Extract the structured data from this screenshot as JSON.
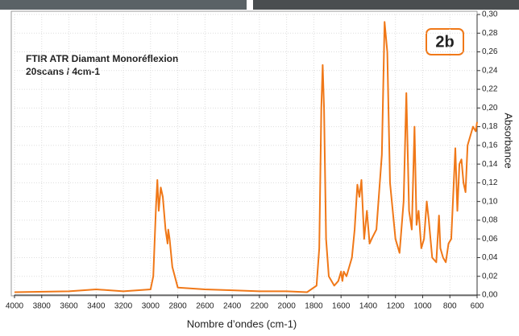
{
  "chart_data": {
    "type": "line",
    "title": "FTIR ATR Diamant Monoréflexion",
    "subtitle": "20scans / 4cm-1",
    "badge": "2b",
    "x_label": "Nombre d’ondes (cm-1)",
    "y_label": "Absorbance",
    "color": "#f07818",
    "grid": true,
    "xlim": [
      4000,
      600
    ],
    "ylim": [
      0,
      0.3
    ],
    "xticks": [
      4000,
      3800,
      3600,
      3400,
      3200,
      3000,
      2800,
      2600,
      2400,
      2200,
      2000,
      1800,
      1600,
      1400,
      1200,
      1000,
      800,
      600
    ],
    "yticks": [
      {
        "value": 0,
        "label": "0,00"
      },
      {
        "value": 0.02,
        "label": "0,02"
      },
      {
        "value": 0.04,
        "label": "0,04"
      },
      {
        "value": 0.06,
        "label": "0,06"
      },
      {
        "value": 0.08,
        "label": "0,08"
      },
      {
        "value": 0.1,
        "label": "0,10"
      },
      {
        "value": 0.12,
        "label": "0,12"
      },
      {
        "value": 0.14,
        "label": "0,14"
      },
      {
        "value": 0.16,
        "label": "0,16"
      },
      {
        "value": 0.18,
        "label": "0,18"
      },
      {
        "value": 0.2,
        "label": "0,20"
      },
      {
        "value": 0.22,
        "label": "0,22"
      },
      {
        "value": 0.24,
        "label": "0,24"
      },
      {
        "value": 0.26,
        "label": "0,26"
      },
      {
        "value": 0.28,
        "label": "0,28"
      },
      {
        "value": 0.3,
        "label": "0,30"
      }
    ],
    "x": [
      4000,
      3600,
      3400,
      3200,
      3000,
      2980,
      2960,
      2950,
      2940,
      2925,
      2910,
      2890,
      2875,
      2870,
      2860,
      2840,
      2800,
      2600,
      2400,
      2200,
      2000,
      1850,
      1780,
      1760,
      1745,
      1735,
      1725,
      1710,
      1690,
      1650,
      1620,
      1600,
      1590,
      1580,
      1560,
      1520,
      1500,
      1480,
      1465,
      1450,
      1430,
      1410,
      1390,
      1375,
      1340,
      1300,
      1280,
      1260,
      1240,
      1200,
      1170,
      1140,
      1120,
      1100,
      1080,
      1060,
      1045,
      1030,
      1010,
      990,
      970,
      955,
      930,
      900,
      880,
      870,
      850,
      830,
      810,
      790,
      760,
      745,
      730,
      715,
      700,
      685,
      670,
      650,
      630,
      610,
      600
    ],
    "values": [
      0.003,
      0.004,
      0.006,
      0.004,
      0.006,
      0.02,
      0.095,
      0.123,
      0.09,
      0.115,
      0.105,
      0.07,
      0.055,
      0.07,
      0.06,
      0.03,
      0.008,
      0.006,
      0.005,
      0.004,
      0.004,
      0.003,
      0.01,
      0.05,
      0.2,
      0.246,
      0.2,
      0.06,
      0.02,
      0.01,
      0.015,
      0.025,
      0.015,
      0.025,
      0.02,
      0.04,
      0.07,
      0.118,
      0.105,
      0.123,
      0.06,
      0.09,
      0.055,
      0.06,
      0.07,
      0.15,
      0.292,
      0.26,
      0.12,
      0.06,
      0.045,
      0.1,
      0.216,
      0.09,
      0.07,
      0.18,
      0.075,
      0.09,
      0.05,
      0.06,
      0.1,
      0.08,
      0.04,
      0.035,
      0.085,
      0.05,
      0.04,
      0.035,
      0.055,
      0.06,
      0.157,
      0.09,
      0.14,
      0.145,
      0.12,
      0.11,
      0.16,
      0.17,
      0.18,
      0.175,
      0.185
    ]
  }
}
